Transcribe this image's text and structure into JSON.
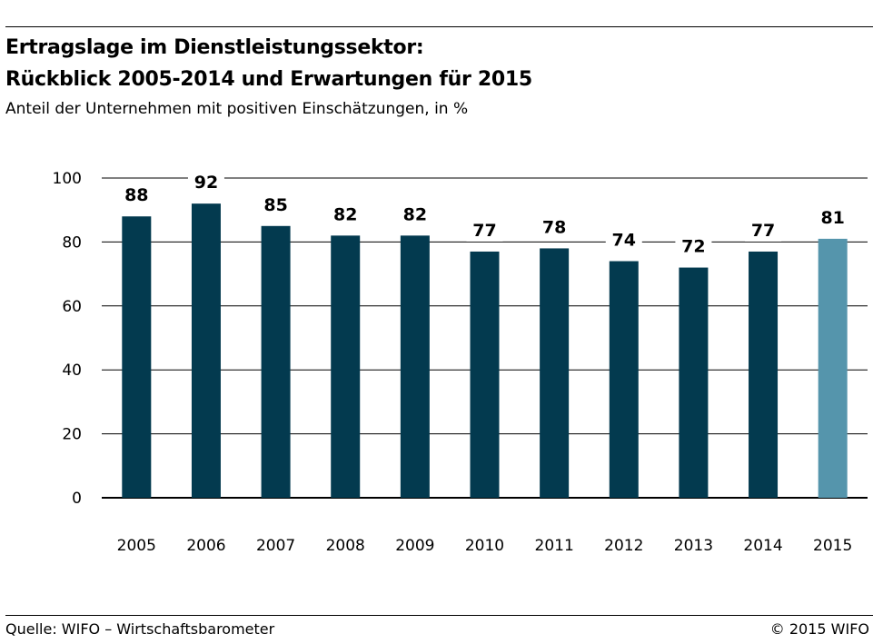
{
  "header": {
    "title_line1": "Ertragslage im Dienstleistungssektor:",
    "title_line2": "Rückblick 2005-2014 und Erwartungen für 2015",
    "subtitle": "Anteil der Unternehmen mit positiven Einschätzungen, in %"
  },
  "footer": {
    "source": "Quelle: WIFO – Wirtschaftsbarometer",
    "copyright": "© 2015 WIFO"
  },
  "chart_data": {
    "type": "bar",
    "categories": [
      "2005",
      "2006",
      "2007",
      "2008",
      "2009",
      "2010",
      "2011",
      "2012",
      "2013",
      "2014",
      "2015"
    ],
    "values": [
      88,
      92,
      85,
      82,
      82,
      77,
      78,
      74,
      72,
      77,
      81
    ],
    "title": "Ertragslage im Dienstleistungssektor: Rückblick 2005-2014 und Erwartungen für 2015",
    "subtitle": "Anteil der Unternehmen mit positiven Einschätzungen, in %",
    "ylim": [
      0,
      100
    ],
    "yticks": [
      0,
      20,
      40,
      60,
      80,
      100
    ],
    "grid": true,
    "data_labels": true,
    "colors": {
      "actual": "#033a4f",
      "expected": "#5595ac",
      "grid": "#000000"
    },
    "expected_categories": [
      "2015"
    ]
  }
}
